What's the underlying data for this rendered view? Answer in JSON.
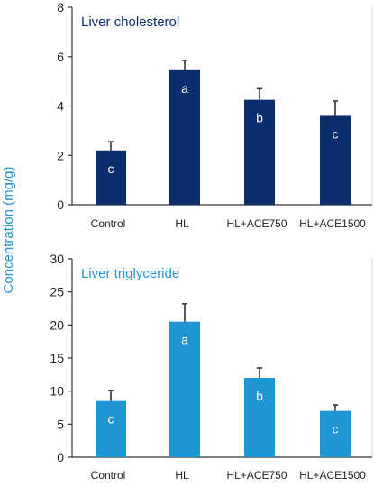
{
  "y_label": "Concentration (mg/g)",
  "colors": {
    "panel_1": "#0b2d6e",
    "panel_2": "#1f96d2",
    "axis": "#333333",
    "error": "#333333",
    "letter": "#ffffff"
  },
  "chart_data": [
    {
      "type": "bar",
      "title": "Liver cholesterol",
      "categories": [
        "Control",
        "HL",
        "HL+ACE750",
        "HL+ACE1500"
      ],
      "values": [
        2.2,
        5.45,
        4.25,
        3.6
      ],
      "errors": [
        0.35,
        0.4,
        0.45,
        0.6
      ],
      "letters": [
        "c",
        "a",
        "b",
        "c"
      ],
      "ylim": [
        0,
        8
      ],
      "yticks": [
        0,
        2,
        4,
        6,
        8
      ],
      "xlabel": "",
      "ylabel": "Concentration (mg/g)",
      "grid": false
    },
    {
      "type": "bar",
      "title": "Liver triglyceride",
      "categories": [
        "Control",
        "HL",
        "HL+ACE750",
        "HL+ACE1500"
      ],
      "values": [
        8.5,
        20.5,
        12.0,
        7.0
      ],
      "errors": [
        1.6,
        2.7,
        1.5,
        0.9
      ],
      "letters": [
        "c",
        "a",
        "b",
        "c"
      ],
      "ylim": [
        0,
        30
      ],
      "yticks": [
        0,
        5,
        10,
        15,
        20,
        25,
        30
      ],
      "xlabel": "",
      "ylabel": "Concentration (mg/g)",
      "grid": false
    }
  ]
}
